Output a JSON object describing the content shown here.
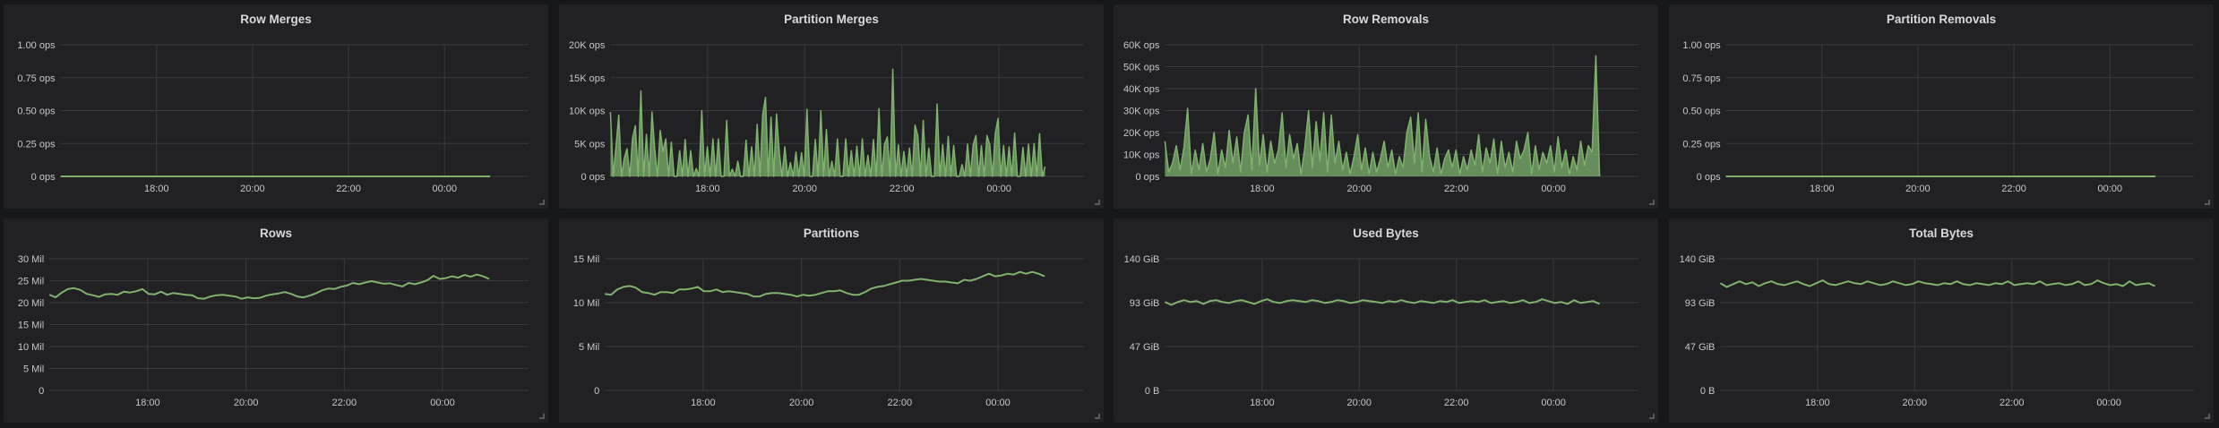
{
  "dashboard": {
    "colors": {
      "background": "#161719",
      "panel": "#212124",
      "grid": "#3a3a3e",
      "series": "#7eb26d",
      "series_fill": "rgba(126,178,109,0.75)",
      "text": "#d8d9da"
    },
    "x_ticks": [
      "18:00",
      "20:00",
      "22:00",
      "00:00"
    ]
  },
  "panels": [
    {
      "id": "row-merges",
      "title": "Row Merges",
      "y_ticks": [
        "0 ops",
        "0.25 ops",
        "0.50 ops",
        "0.75 ops",
        "1.00 ops"
      ],
      "ymax": 1,
      "fill": false
    },
    {
      "id": "partition-merges",
      "title": "Partition Merges",
      "y_ticks": [
        "0 ops",
        "5K ops",
        "10K ops",
        "15K ops",
        "20K ops"
      ],
      "ymax": 20000,
      "fill": true
    },
    {
      "id": "row-removals",
      "title": "Row Removals",
      "y_ticks": [
        "0 ops",
        "10K ops",
        "20K ops",
        "30K ops",
        "40K ops",
        "50K ops",
        "60K ops"
      ],
      "ymax": 60000,
      "fill": true
    },
    {
      "id": "partition-removals",
      "title": "Partition Removals",
      "y_ticks": [
        "0 ops",
        "0.25 ops",
        "0.50 ops",
        "0.75 ops",
        "1.00 ops"
      ],
      "ymax": 1,
      "fill": false
    },
    {
      "id": "rows",
      "title": "Rows",
      "y_ticks": [
        "0",
        "5 Mil",
        "10 Mil",
        "15 Mil",
        "20 Mil",
        "25 Mil",
        "30 Mil"
      ],
      "ymax": 30000000,
      "fill": false
    },
    {
      "id": "partitions",
      "title": "Partitions",
      "y_ticks": [
        "0",
        "5 Mil",
        "10 Mil",
        "15 Mil"
      ],
      "ymax": 15000000,
      "fill": false
    },
    {
      "id": "used-bytes",
      "title": "Used Bytes",
      "y_ticks": [
        "0 B",
        "47 GiB",
        "93 GiB",
        "140 GiB"
      ],
      "ymax": 140,
      "fill": false
    },
    {
      "id": "total-bytes",
      "title": "Total Bytes",
      "y_ticks": [
        "0 B",
        "47 GiB",
        "93 GiB",
        "140 GiB"
      ],
      "ymax": 140,
      "fill": false
    }
  ],
  "chart_data": [
    {
      "type": "line",
      "title": "Row Merges",
      "xlabel": "",
      "ylabel": "",
      "x_ticks": [
        "18:00",
        "20:00",
        "22:00",
        "00:00"
      ],
      "y_ticks": [
        "0 ops",
        "0.25 ops",
        "0.50 ops",
        "0.75 ops",
        "1.00 ops"
      ],
      "ylim": [
        0,
        1
      ],
      "grid": true,
      "legend": null,
      "series": [
        {
          "name": "Row Merges",
          "values": [
            0,
            0,
            0,
            0,
            0,
            0,
            0,
            0,
            0,
            0,
            0,
            0,
            0,
            0,
            0,
            0,
            0,
            0,
            0,
            0,
            0,
            0,
            0,
            0,
            0,
            0,
            0,
            0,
            0,
            0
          ]
        }
      ]
    },
    {
      "type": "area",
      "title": "Partition Merges",
      "xlabel": "",
      "ylabel": "",
      "x_ticks": [
        "18:00",
        "20:00",
        "22:00",
        "00:00"
      ],
      "y_ticks": [
        "0 ops",
        "5K ops",
        "10K ops",
        "15K ops",
        "20K ops"
      ],
      "ylim": [
        0,
        20000
      ],
      "grid": true,
      "legend": null,
      "series": [
        {
          "name": "Partition Merges",
          "values": [
            9800,
            0,
            4500,
            9300,
            0,
            2800,
            4200,
            0,
            5800,
            7700,
            0,
            13000,
            0,
            6400,
            0,
            9800,
            4200,
            0,
            7000,
            3800,
            5700,
            0,
            5200,
            0,
            0,
            3900,
            0,
            5600,
            0,
            3900,
            0,
            1200,
            0,
            10000,
            0,
            4500,
            0,
            5700,
            0,
            5700,
            0,
            0,
            8500,
            0,
            1100,
            0,
            2300,
            0,
            0,
            5500,
            0,
            4500,
            0,
            7900,
            0,
            9400,
            12000,
            0,
            9000,
            0,
            9500,
            3600,
            0,
            4500,
            0,
            2100,
            0,
            3700,
            0,
            3600,
            0,
            10200,
            0,
            0,
            5600,
            0,
            10000,
            0,
            7100,
            0,
            2300,
            0,
            5700,
            0,
            0,
            5700,
            0,
            3900,
            0,
            4600,
            0,
            5700,
            0,
            3200,
            0,
            5600,
            0,
            10300,
            0,
            4900,
            6000,
            0,
            16300,
            0,
            4800,
            0,
            3800,
            0,
            4300,
            0,
            7800,
            6200,
            0,
            8500,
            0,
            4300,
            0,
            0,
            11000,
            0,
            4800,
            0,
            6100,
            0,
            4700,
            0,
            0,
            1800,
            0,
            4900,
            0,
            4800,
            6200,
            0,
            4700,
            0,
            6200,
            4800,
            0,
            6500,
            8800,
            0,
            4700,
            0,
            4500,
            0,
            6600,
            0,
            0,
            4400,
            0,
            4900,
            0,
            5000,
            0,
            6500,
            0,
            1500
          ]
        }
      ]
    },
    {
      "type": "area",
      "title": "Row Removals",
      "xlabel": "",
      "ylabel": "",
      "x_ticks": [
        "18:00",
        "20:00",
        "22:00",
        "00:00"
      ],
      "y_ticks": [
        "0 ops",
        "10K ops",
        "20K ops",
        "30K ops",
        "40K ops",
        "50K ops",
        "60K ops"
      ],
      "ylim": [
        0,
        60000
      ],
      "grid": true,
      "legend": null,
      "series": [
        {
          "name": "Row Removals",
          "values": [
            16000,
            2000,
            6000,
            14000,
            3000,
            13000,
            31000,
            1000,
            12000,
            3000,
            15000,
            2000,
            8000,
            20000,
            1000,
            12000,
            4000,
            21000,
            6000,
            18000,
            2000,
            20000,
            28000,
            3000,
            40000,
            5000,
            19000,
            2000,
            16000,
            6000,
            12000,
            29000,
            4000,
            19000,
            8000,
            15000,
            1000,
            13000,
            30000,
            4000,
            25000,
            7000,
            29000,
            2000,
            28000,
            6000,
            16000,
            3000,
            11000,
            1000,
            9000,
            19000,
            3000,
            13000,
            1000,
            11000,
            2000,
            8000,
            16000,
            4000,
            12000,
            1000,
            9000,
            4000,
            20000,
            27000,
            6000,
            29000,
            2000,
            26000,
            9000,
            2000,
            13000,
            1000,
            8000,
            12000,
            4000,
            12000,
            1000,
            9000,
            3000,
            12000,
            5000,
            19000,
            2000,
            13000,
            6000,
            17000,
            1000,
            16000,
            4000,
            11000,
            2000,
            16000,
            8000,
            12000,
            20000,
            1000,
            14000,
            3000,
            11000,
            6000,
            14000,
            2000,
            18000,
            4000,
            12000,
            1000,
            9000,
            3000,
            16000,
            5000,
            14000,
            11000,
            55000,
            0
          ]
        }
      ]
    },
    {
      "type": "line",
      "title": "Partition Removals",
      "xlabel": "",
      "ylabel": "",
      "x_ticks": [
        "18:00",
        "20:00",
        "22:00",
        "00:00"
      ],
      "y_ticks": [
        "0 ops",
        "0.25 ops",
        "0.50 ops",
        "0.75 ops",
        "1.00 ops"
      ],
      "ylim": [
        0,
        1
      ],
      "grid": true,
      "legend": null,
      "series": [
        {
          "name": "Partition Removals",
          "values": [
            0,
            0,
            0,
            0,
            0,
            0,
            0,
            0,
            0,
            0,
            0,
            0,
            0,
            0,
            0,
            0,
            0,
            0,
            0,
            0,
            0,
            0,
            0,
            0,
            0,
            0,
            0,
            0,
            0,
            0
          ]
        }
      ]
    },
    {
      "type": "line",
      "title": "Rows",
      "xlabel": "",
      "ylabel": "",
      "x_ticks": [
        "18:00",
        "20:00",
        "22:00",
        "00:00"
      ],
      "y_ticks": [
        "0",
        "5 Mil",
        "10 Mil",
        "15 Mil",
        "20 Mil",
        "25 Mil",
        "30 Mil"
      ],
      "ylim": [
        0,
        30000000
      ],
      "grid": true,
      "legend": null,
      "series": [
        {
          "name": "Rows",
          "values": [
            21800000,
            21200000,
            22300000,
            23100000,
            23300000,
            22900000,
            22000000,
            21700000,
            21300000,
            21900000,
            22000000,
            21800000,
            22500000,
            22300000,
            22600000,
            23100000,
            22000000,
            21900000,
            22500000,
            21800000,
            22200000,
            22000000,
            21800000,
            21700000,
            21000000,
            20900000,
            21400000,
            21700000,
            21800000,
            21600000,
            21400000,
            20900000,
            21200000,
            21000000,
            21100000,
            21600000,
            21900000,
            22100000,
            22400000,
            22000000,
            21400000,
            21200000,
            21600000,
            22100000,
            22800000,
            23200000,
            23100000,
            23600000,
            23900000,
            24500000,
            24200000,
            24600000,
            24900000,
            24600000,
            24300000,
            24400000,
            24000000,
            23700000,
            24500000,
            24200000,
            24600000,
            25100000,
            26100000,
            25400000,
            25600000,
            26000000,
            25700000,
            26300000,
            25900000,
            26400000,
            26000000,
            25400000
          ]
        }
      ]
    },
    {
      "type": "line",
      "title": "Partitions",
      "xlabel": "",
      "ylabel": "",
      "x_ticks": [
        "18:00",
        "20:00",
        "22:00",
        "00:00"
      ],
      "y_ticks": [
        "0",
        "5 Mil",
        "10 Mil",
        "15 Mil"
      ],
      "ylim": [
        0,
        15000000
      ],
      "grid": true,
      "legend": null,
      "series": [
        {
          "name": "Partitions",
          "values": [
            11000000,
            10900000,
            11500000,
            11800000,
            11900000,
            11700000,
            11200000,
            11100000,
            10900000,
            11200000,
            11200000,
            11100000,
            11500000,
            11500000,
            11600000,
            11800000,
            11300000,
            11300000,
            11500000,
            11200000,
            11300000,
            11200000,
            11100000,
            11000000,
            10700000,
            10700000,
            11000000,
            11100000,
            11100000,
            11000000,
            10900000,
            10700000,
            10900000,
            10800000,
            10900000,
            11100000,
            11300000,
            11300000,
            11400000,
            11100000,
            10900000,
            10900000,
            11200000,
            11600000,
            11800000,
            11900000,
            12100000,
            12300000,
            12500000,
            12500000,
            12600000,
            12700000,
            12600000,
            12500000,
            12400000,
            12400000,
            12300000,
            12200000,
            12600000,
            12500000,
            12700000,
            13000000,
            13300000,
            13000000,
            13100000,
            13300000,
            13200000,
            13500000,
            13300000,
            13500000,
            13300000,
            13000000
          ]
        }
      ]
    },
    {
      "type": "line",
      "title": "Used Bytes",
      "xlabel": "",
      "ylabel": "",
      "x_ticks": [
        "18:00",
        "20:00",
        "22:00",
        "00:00"
      ],
      "y_ticks": [
        "0 B",
        "47 GiB",
        "93 GiB",
        "140 GiB"
      ],
      "ylim": [
        0,
        140
      ],
      "grid": true,
      "legend": null,
      "series": [
        {
          "name": "Used Bytes (GiB)",
          "values": [
            94,
            91,
            94,
            96,
            94,
            95,
            92,
            95,
            96,
            94,
            93,
            95,
            96,
            94,
            92,
            95,
            97,
            94,
            93,
            95,
            96,
            95,
            94,
            96,
            95,
            93,
            94,
            96,
            95,
            93,
            94,
            96,
            95,
            94,
            93,
            95,
            94,
            96,
            94,
            93,
            95,
            94,
            93,
            95,
            94,
            96,
            93,
            94,
            95,
            94,
            96,
            93,
            94,
            95,
            93,
            94,
            96,
            93,
            94,
            97,
            95,
            93,
            94,
            92,
            96,
            93,
            94,
            95,
            92
          ]
        }
      ]
    },
    {
      "type": "line",
      "title": "Total Bytes",
      "xlabel": "",
      "ylabel": "",
      "x_ticks": [
        "18:00",
        "20:00",
        "22:00",
        "00:00"
      ],
      "y_ticks": [
        "0 B",
        "47 GiB",
        "93 GiB",
        "140 GiB"
      ],
      "ylim": [
        0,
        140
      ],
      "grid": true,
      "legend": null,
      "series": [
        {
          "name": "Total Bytes (GiB)",
          "values": [
            114,
            110,
            113,
            116,
            113,
            115,
            111,
            114,
            116,
            113,
            112,
            114,
            116,
            113,
            111,
            114,
            117,
            113,
            112,
            114,
            116,
            114,
            113,
            116,
            114,
            112,
            113,
            116,
            114,
            112,
            113,
            116,
            114,
            113,
            112,
            114,
            113,
            116,
            113,
            112,
            114,
            113,
            112,
            114,
            113,
            116,
            112,
            113,
            114,
            113,
            116,
            112,
            113,
            114,
            112,
            113,
            116,
            112,
            113,
            117,
            114,
            112,
            113,
            111,
            116,
            112,
            113,
            114,
            111
          ]
        }
      ]
    }
  ]
}
